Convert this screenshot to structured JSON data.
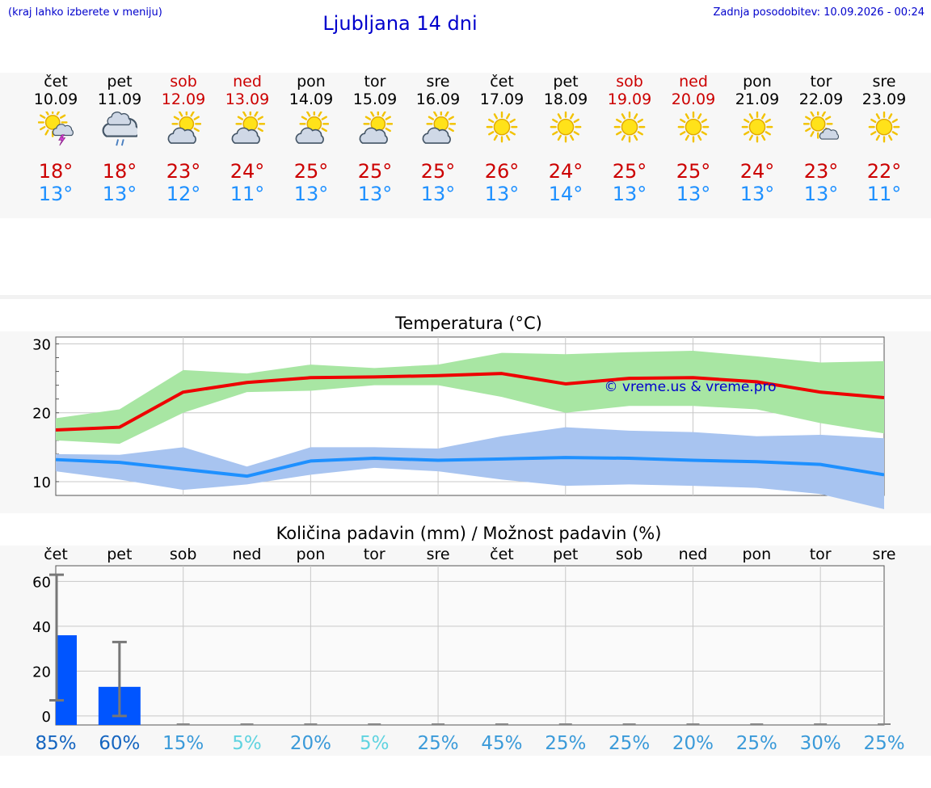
{
  "header": {
    "menu_hint": "(kraj lahko izberete v meniju)",
    "title": "Ljubljana 14 dni",
    "updated": "Zadnja posodobitev: 10.09.2026 - 00:24"
  },
  "days": [
    {
      "name": "čet",
      "date": "10.09",
      "weekend": false,
      "icon": "sun-cloud-thunder-icon",
      "tmax": "18°",
      "tmin": "13°"
    },
    {
      "name": "pet",
      "date": "11.09",
      "weekend": false,
      "icon": "cloud-rain-icon",
      "tmax": "18°",
      "tmin": "13°"
    },
    {
      "name": "sob",
      "date": "12.09",
      "weekend": true,
      "icon": "sun-cloud-icon",
      "tmax": "23°",
      "tmin": "12°"
    },
    {
      "name": "ned",
      "date": "13.09",
      "weekend": true,
      "icon": "sun-cloud-icon",
      "tmax": "24°",
      "tmin": "11°"
    },
    {
      "name": "pon",
      "date": "14.09",
      "weekend": false,
      "icon": "sun-cloud-icon",
      "tmax": "25°",
      "tmin": "13°"
    },
    {
      "name": "tor",
      "date": "15.09",
      "weekend": false,
      "icon": "sun-cloud-icon",
      "tmax": "25°",
      "tmin": "13°"
    },
    {
      "name": "sre",
      "date": "16.09",
      "weekend": false,
      "icon": "sun-cloud-icon",
      "tmax": "25°",
      "tmin": "13°"
    },
    {
      "name": "čet",
      "date": "17.09",
      "weekend": false,
      "icon": "sun-icon",
      "tmax": "26°",
      "tmin": "13°"
    },
    {
      "name": "pet",
      "date": "18.09",
      "weekend": false,
      "icon": "sun-icon",
      "tmax": "24°",
      "tmin": "14°"
    },
    {
      "name": "sob",
      "date": "19.09",
      "weekend": true,
      "icon": "sun-icon",
      "tmax": "25°",
      "tmin": "13°"
    },
    {
      "name": "ned",
      "date": "20.09",
      "weekend": true,
      "icon": "sun-icon",
      "tmax": "25°",
      "tmin": "13°"
    },
    {
      "name": "pon",
      "date": "21.09",
      "weekend": false,
      "icon": "sun-icon",
      "tmax": "24°",
      "tmin": "13°"
    },
    {
      "name": "tor",
      "date": "22.09",
      "weekend": false,
      "icon": "sun-small-cloud-icon",
      "tmax": "23°",
      "tmin": "13°"
    },
    {
      "name": "sre",
      "date": "23.09",
      "weekend": false,
      "icon": "sun-icon",
      "tmax": "22°",
      "tmin": "11°"
    }
  ],
  "colors": {
    "max_line": "#ee0000",
    "max_band": "#a8e6a3",
    "min_line": "#1e90ff",
    "min_band": "#a8c4f0",
    "bar": "#0055ff",
    "errbar": "#777777",
    "weekend": "#cc0000",
    "prob_high": "#1565c0",
    "prob_mid": "#3a9ad9",
    "prob_low": "#5fd3e0"
  },
  "chart_data": [
    {
      "type": "line",
      "title": "Temperatura (°C)",
      "watermark": "© vreme.us & vreme.pro",
      "categories": [
        "10.09",
        "11.09",
        "12.09",
        "13.09",
        "14.09",
        "15.09",
        "16.09",
        "17.09",
        "18.09",
        "19.09",
        "20.09",
        "21.09",
        "22.09",
        "23.09"
      ],
      "ylim": [
        8,
        31
      ],
      "yticks": [
        10,
        20,
        30
      ],
      "grid": true,
      "series": [
        {
          "values": [
            17.5,
            17.9,
            23.0,
            24.4,
            25.1,
            25.2,
            25.4,
            25.7,
            24.2,
            25.0,
            25.1,
            24.5,
            23.0,
            22.2
          ],
          "band_low": [
            16.0,
            15.5,
            20.0,
            23.0,
            23.2,
            24.0,
            24.0,
            22.3,
            20.0,
            21.0,
            21.0,
            20.5,
            18.5,
            17.0
          ],
          "band_high": [
            19.2,
            20.5,
            26.2,
            25.7,
            27.0,
            26.5,
            27.0,
            28.7,
            28.5,
            28.8,
            29.0,
            28.2,
            27.3,
            27.5
          ]
        },
        {
          "values": [
            13.2,
            12.8,
            11.8,
            10.8,
            13.0,
            13.4,
            13.1,
            13.3,
            13.5,
            13.4,
            13.1,
            12.9,
            12.5,
            11.0
          ],
          "band_low": [
            11.5,
            10.3,
            8.8,
            9.6,
            11.0,
            12.0,
            11.5,
            10.3,
            9.4,
            9.6,
            9.4,
            9.1,
            8.2,
            6.0
          ],
          "band_high": [
            14.0,
            13.9,
            15.0,
            12.2,
            15.0,
            15.0,
            14.8,
            16.6,
            17.9,
            17.4,
            17.2,
            16.6,
            16.8,
            16.3
          ]
        }
      ]
    },
    {
      "type": "bar",
      "title": "Količina padavin (mm) / Možnost padavin (%)",
      "categories": [
        "čet",
        "pet",
        "sob",
        "ned",
        "pon",
        "tor",
        "sre",
        "čet",
        "pet",
        "sob",
        "ned",
        "pon",
        "tor",
        "sre"
      ],
      "ylim": [
        -4,
        67
      ],
      "yticks": [
        0,
        20,
        40,
        60
      ],
      "grid": true,
      "values": [
        36,
        13,
        0,
        0,
        0,
        0,
        0,
        0,
        0,
        0,
        0,
        0,
        0,
        0
      ],
      "err_low": [
        7,
        0,
        0,
        0,
        0,
        0,
        0,
        0,
        0,
        0,
        0,
        0,
        0,
        0
      ],
      "err_high": [
        63,
        33,
        0,
        0,
        0,
        0,
        0,
        0,
        0,
        0,
        0,
        0,
        0,
        0
      ],
      "probabilities": [
        "85%",
        "60%",
        "15%",
        "5%",
        "20%",
        "5%",
        "25%",
        "45%",
        "25%",
        "25%",
        "20%",
        "25%",
        "30%",
        "25%"
      ],
      "probability_levels": [
        "high",
        "high",
        "mid",
        "low",
        "mid",
        "low",
        "mid",
        "mid",
        "mid",
        "mid",
        "mid",
        "mid",
        "mid",
        "mid"
      ]
    }
  ]
}
